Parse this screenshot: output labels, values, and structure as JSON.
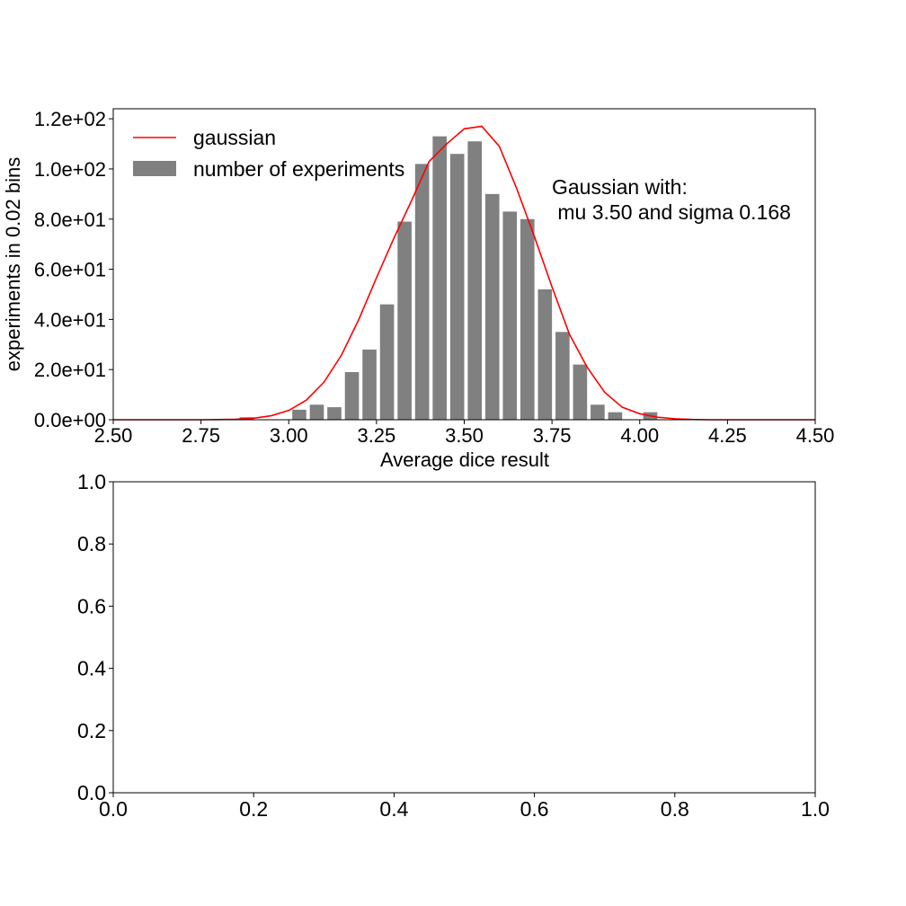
{
  "chart_data": [
    {
      "type": "bar",
      "title": "",
      "xlabel": "Average dice result",
      "ylabel": "experiments in 0.02 bins",
      "xlim": [
        2.5,
        4.5
      ],
      "ylim": [
        0,
        124
      ],
      "xticks": [
        2.5,
        2.75,
        3.0,
        3.25,
        3.5,
        3.75,
        4.0,
        4.25,
        4.5
      ],
      "xtick_labels": [
        "2.50",
        "2.75",
        "3.00",
        "3.25",
        "3.50",
        "3.75",
        "4.00",
        "4.25",
        "4.50"
      ],
      "yticks": [
        0,
        20,
        40,
        60,
        80,
        100,
        120
      ],
      "ytick_labels": [
        "0.0e+00",
        "2.0e+01",
        "4.0e+01",
        "6.0e+01",
        "8.0e+01",
        "1.0e+02",
        "1.2e+02"
      ],
      "bar_width": 0.04,
      "series": [
        {
          "name": "number of experiments",
          "kind": "bar",
          "color": "#808080",
          "x": [
            2.88,
            3.03,
            3.08,
            3.13,
            3.18,
            3.23,
            3.28,
            3.33,
            3.38,
            3.43,
            3.48,
            3.53,
            3.58,
            3.63,
            3.68,
            3.73,
            3.78,
            3.83,
            3.88,
            3.93,
            4.03
          ],
          "values": [
            1,
            4,
            6,
            5,
            19,
            28,
            46,
            79,
            102,
            113,
            106,
            111,
            90,
            83,
            80,
            52,
            35,
            22,
            6,
            3,
            3
          ]
        },
        {
          "name": "gaussian",
          "kind": "line",
          "color": "#ff0000",
          "x": [
            2.5,
            2.55,
            2.6,
            2.65,
            2.7,
            2.75,
            2.8,
            2.85,
            2.9,
            2.95,
            3.0,
            3.05,
            3.1,
            3.15,
            3.2,
            3.25,
            3.3,
            3.35,
            3.4,
            3.45,
            3.5,
            3.55,
            3.6,
            3.65,
            3.7,
            3.75,
            3.8,
            3.85,
            3.9,
            3.95,
            4.0,
            4.05,
            4.1,
            4.15,
            4.2,
            4.25,
            4.3,
            4.35,
            4.4,
            4.45,
            4.5
          ],
          "values": [
            0,
            0,
            0,
            0,
            0,
            0,
            0.05,
            0.2,
            0.6,
            1.6,
            3.7,
            7.8,
            14.9,
            25.7,
            40.1,
            56.6,
            72.5,
            87.4,
            103,
            110,
            116,
            117,
            109,
            92,
            73,
            53,
            34,
            21,
            11,
            5,
            2.4,
            1,
            0.4,
            0.1,
            0,
            0,
            0,
            0,
            0,
            0,
            0
          ]
        }
      ],
      "legend": {
        "position": "upper-left",
        "entries": [
          "gaussian",
          "number of experiments"
        ]
      },
      "annotation": {
        "line1": "Gaussian with:",
        "line2": " mu 3.50 and sigma 0.168"
      }
    },
    {
      "type": "empty",
      "title": "",
      "xlabel": "",
      "ylabel": "",
      "xlim": [
        0,
        1
      ],
      "ylim": [
        0,
        1
      ],
      "xticks": [
        0,
        0.2,
        0.4,
        0.6,
        0.8,
        1.0
      ],
      "xtick_labels": [
        "0.0",
        "0.2",
        "0.4",
        "0.6",
        "0.8",
        "1.0"
      ],
      "yticks": [
        0,
        0.2,
        0.4,
        0.6,
        0.8,
        1.0
      ],
      "ytick_labels": [
        "0.0",
        "0.2",
        "0.4",
        "0.6",
        "0.8",
        "1.0"
      ]
    }
  ]
}
